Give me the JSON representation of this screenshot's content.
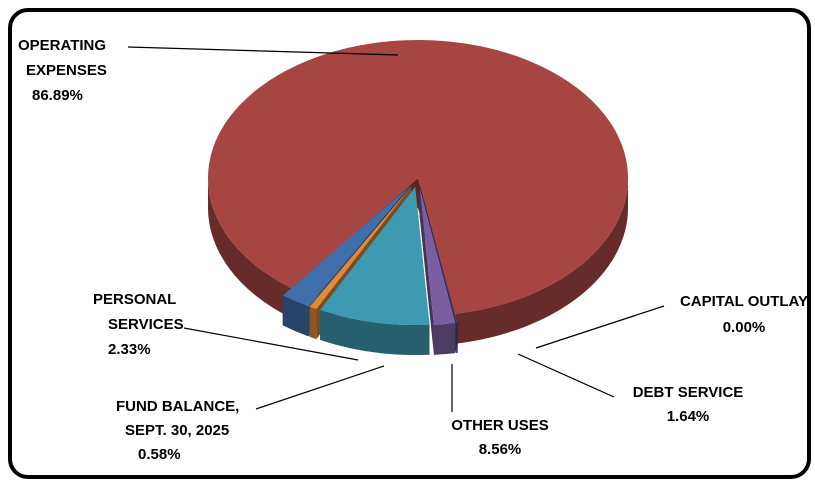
{
  "chart_data": {
    "type": "pie",
    "title": "",
    "style": "3d-exploded",
    "slices": [
      {
        "label_lines": [
          "OPERATING",
          "EXPENSES"
        ],
        "value": 86.89,
        "value_label": "86.89%",
        "color": "#a64542"
      },
      {
        "label_lines": [
          "CAPITAL OUTLAY"
        ],
        "value": 0.0,
        "value_label": "0.00%",
        "color": "#4f3f6b"
      },
      {
        "label_lines": [
          "DEBT SERVICE"
        ],
        "value": 1.64,
        "value_label": "1.64%",
        "color": "#7a5fa0"
      },
      {
        "label_lines": [
          "OTHER USES"
        ],
        "value": 8.56,
        "value_label": "8.56%",
        "color": "#3d9ab0"
      },
      {
        "label_lines": [
          "FUND BALANCE,",
          "SEPT. 30, 2025"
        ],
        "value": 0.58,
        "value_label": "0.58%",
        "color": "#e28a3b"
      },
      {
        "label_lines": [
          "PERSONAL",
          "SERVICES"
        ],
        "value": 2.33,
        "value_label": "2.33%",
        "color": "#3f6eaa"
      }
    ],
    "legend": "none"
  }
}
